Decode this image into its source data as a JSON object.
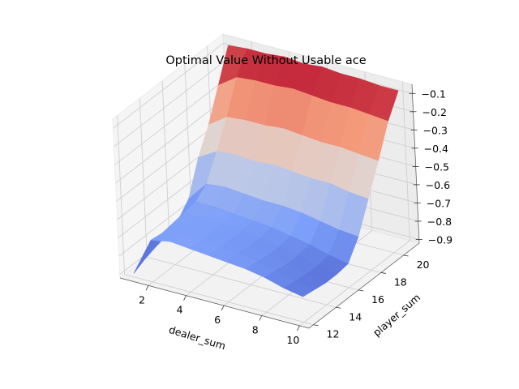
{
  "chart_data": {
    "type": "surface",
    "title": "Optimal Value Without Usable ace",
    "xlabel": "dealer_sum",
    "ylabel": "player_sum",
    "zlabel": "",
    "x": [
      1,
      2,
      3,
      4,
      5,
      6,
      7,
      8,
      9,
      10
    ],
    "y": [
      12,
      13,
      14,
      15,
      16,
      17,
      18,
      19,
      20,
      21
    ],
    "xticks": [
      "2",
      "4",
      "6",
      "8",
      "10"
    ],
    "yticks": [
      "12",
      "14",
      "16",
      "18",
      "20"
    ],
    "zticks": [
      "−0.1",
      "−0.2",
      "−0.3",
      "−0.4",
      "−0.5",
      "−0.6",
      "−0.7",
      "−0.8",
      "−0.9"
    ],
    "xlim": [
      0.5,
      10.5
    ],
    "ylim": [
      11.6,
      21.4
    ],
    "zlim": [
      -0.92,
      -0.05
    ],
    "colormap": "coolwarm",
    "grid": true,
    "z": [
      [
        -0.9,
        -0.69,
        -0.67,
        -0.68,
        -0.69,
        -0.7,
        -0.71,
        -0.73,
        -0.76,
        -0.78
      ],
      [
        -0.87,
        -0.7,
        -0.68,
        -0.69,
        -0.7,
        -0.7,
        -0.72,
        -0.74,
        -0.77,
        -0.79
      ],
      [
        -0.85,
        -0.69,
        -0.68,
        -0.69,
        -0.7,
        -0.71,
        -0.73,
        -0.75,
        -0.78,
        -0.8
      ],
      [
        -0.83,
        -0.68,
        -0.68,
        -0.69,
        -0.7,
        -0.71,
        -0.73,
        -0.75,
        -0.78,
        -0.8
      ],
      [
        -0.8,
        -0.67,
        -0.67,
        -0.68,
        -0.69,
        -0.7,
        -0.72,
        -0.74,
        -0.77,
        -0.79
      ],
      [
        -0.73,
        -0.62,
        -0.61,
        -0.62,
        -0.63,
        -0.63,
        -0.64,
        -0.66,
        -0.68,
        -0.69
      ],
      [
        -0.55,
        -0.49,
        -0.48,
        -0.49,
        -0.48,
        -0.49,
        -0.5,
        -0.5,
        -0.52,
        -0.53
      ],
      [
        -0.42,
        -0.35,
        -0.34,
        -0.34,
        -0.33,
        -0.34,
        -0.35,
        -0.35,
        -0.36,
        -0.37
      ],
      [
        -0.25,
        -0.18,
        -0.17,
        -0.17,
        -0.16,
        -0.17,
        -0.18,
        -0.18,
        -0.19,
        -0.2
      ],
      [
        -0.08,
        -0.07,
        -0.07,
        -0.06,
        -0.07,
        -0.06,
        -0.07,
        -0.07,
        -0.08,
        -0.08
      ]
    ]
  }
}
